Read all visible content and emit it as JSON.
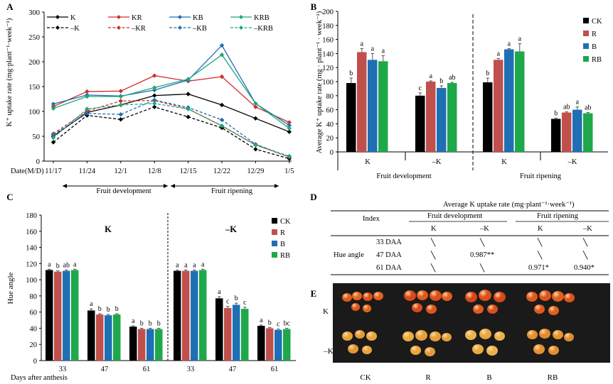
{
  "colors": {
    "CK": "#000000",
    "R": "#c0504d",
    "B": "#1f6fb4",
    "RB": "#1ea84a"
  },
  "panel_labels": [
    "A",
    "B",
    "C",
    "D",
    "E"
  ],
  "chart_data": [
    {
      "id": "A",
      "type": "line",
      "ylabel": "K⁺ uptake rate (mg·plant⁻¹·week⁻¹)",
      "xlabel": "Date(M/D)",
      "categories": [
        "11/17",
        "11/24",
        "12/1",
        "12/8",
        "12/15",
        "12/22",
        "12/29",
        "1/5"
      ],
      "ylim": [
        0,
        300
      ],
      "yticks": [
        0,
        50,
        100,
        150,
        200,
        250,
        300
      ],
      "series": [
        {
          "name": "K",
          "color": "#000000",
          "dash": false,
          "marker": "diamond",
          "values": [
            50,
            98,
            113,
            132,
            135,
            113,
            86,
            59
          ]
        },
        {
          "name": "KR",
          "color": "#d02e2e",
          "dash": false,
          "marker": "diamond",
          "values": [
            110,
            140,
            141,
            172,
            161,
            170,
            109,
            78
          ]
        },
        {
          "name": "KB",
          "color": "#1f6fb4",
          "dash": false,
          "marker": "diamond",
          "values": [
            115,
            133,
            131,
            143,
            163,
            233,
            116,
            72
          ]
        },
        {
          "name": "KRB",
          "color": "#1ea879",
          "dash": false,
          "marker": "diamond",
          "values": [
            106,
            130,
            130,
            148,
            165,
            214,
            116,
            66
          ]
        },
        {
          "name": "–K",
          "color": "#000000",
          "dash": true,
          "marker": "diamond",
          "values": [
            38,
            92,
            84,
            109,
            89,
            67,
            24,
            5
          ]
        },
        {
          "name": "–KR",
          "color": "#d02e2e",
          "dash": true,
          "marker": "diamond",
          "values": [
            55,
            101,
            121,
            122,
            105,
            71,
            33,
            8
          ]
        },
        {
          "name": "–KB",
          "color": "#1f6fb4",
          "dash": true,
          "marker": "diamond",
          "values": [
            53,
            96,
            94,
            123,
            108,
            83,
            34,
            9
          ]
        },
        {
          "name": "–KRB",
          "color": "#1ea879",
          "dash": true,
          "marker": "diamond",
          "values": [
            47,
            105,
            113,
            116,
            105,
            71,
            32,
            10
          ]
        }
      ],
      "arrows": [
        {
          "label": "Fruit development"
        },
        {
          "label": "Fruit ripening"
        }
      ]
    },
    {
      "id": "B",
      "type": "bar",
      "ylabel": "Average K⁺ uptake rate (mg · plant⁻¹ · week⁻¹)",
      "ylim": [
        0,
        200
      ],
      "yticks": [
        0,
        20,
        40,
        60,
        80,
        100,
        120,
        140,
        160,
        180,
        200
      ],
      "legend": [
        "CK",
        "R",
        "B",
        "RB"
      ],
      "groups": [
        {
          "label": "K",
          "values": [
            98,
            142,
            131,
            129
          ],
          "errors": [
            7,
            5,
            9,
            8
          ],
          "letters": [
            "b",
            "a",
            "a",
            "a"
          ]
        },
        {
          "label": "–K",
          "values": [
            80,
            100,
            91,
            98
          ],
          "errors": [
            4,
            1,
            3,
            1
          ],
          "letters": [
            "c",
            "a",
            "b",
            "ab"
          ]
        },
        {
          "label": "K",
          "values": [
            99,
            131,
            146,
            143
          ],
          "errors": [
            6,
            2,
            1,
            11
          ],
          "letters": [
            "b",
            "a",
            "a",
            "a"
          ]
        },
        {
          "label": "–K",
          "values": [
            47,
            56,
            60,
            55
          ],
          "errors": [
            1,
            1,
            4,
            1
          ],
          "letters": [
            "b",
            "ab",
            "a",
            "ab"
          ]
        }
      ],
      "stages": [
        "Fruit development",
        "Fruit ripening"
      ]
    },
    {
      "id": "C",
      "type": "bar",
      "ylabel": "Hue angle",
      "xlabel": "Days after anthesis",
      "ylim": [
        0,
        180
      ],
      "yticks": [
        0,
        20,
        40,
        60,
        80,
        100,
        120,
        140,
        160,
        180
      ],
      "legend": [
        "CK",
        "R",
        "B",
        "RB"
      ],
      "panel_titles": [
        "K",
        "–K"
      ],
      "groups": [
        {
          "label": "33",
          "values": [
            112,
            110,
            111,
            112
          ],
          "errors": [
            1,
            1,
            1,
            1
          ],
          "letters": [
            "a",
            "b",
            "ab",
            "a"
          ]
        },
        {
          "label": "47",
          "values": [
            62,
            57,
            56,
            57
          ],
          "errors": [
            2,
            1,
            1,
            1
          ],
          "letters": [
            "a",
            "b",
            "b",
            "b"
          ]
        },
        {
          "label": "61",
          "values": [
            42,
            39,
            39,
            39
          ],
          "errors": [
            1,
            1,
            1,
            1
          ],
          "letters": [
            "a",
            "b",
            "b",
            "b"
          ]
        },
        {
          "label": "33",
          "values": [
            111,
            111,
            111,
            112
          ],
          "errors": [
            1,
            1,
            1,
            1
          ],
          "letters": [
            "a",
            "a",
            "a",
            "a"
          ]
        },
        {
          "label": "47",
          "values": [
            77,
            65,
            69,
            64
          ],
          "errors": [
            2,
            2,
            2,
            2
          ],
          "letters": [
            "a",
            "c",
            "b",
            "c"
          ]
        },
        {
          "label": "61",
          "values": [
            43,
            40,
            38,
            39
          ],
          "errors": [
            1,
            1,
            1,
            1
          ],
          "letters": [
            "a",
            "b",
            "c",
            "bc"
          ]
        }
      ]
    },
    {
      "id": "D",
      "type": "table",
      "title": "Average K uptake rate (mg·plant⁻¹·week⁻¹)",
      "index_header": "Index",
      "stage_headers": [
        "Fruit development",
        "Fruit ripening"
      ],
      "sub_headers": [
        "K",
        "–K",
        "K",
        "–K"
      ],
      "row_group": "Hue angle",
      "rows": [
        {
          "label": "33 DAA",
          "cells": [
            "╲",
            "╲",
            "╲",
            "╲"
          ]
        },
        {
          "label": "47 DAA",
          "cells": [
            "╲",
            "0.987**",
            "╲",
            "╲"
          ]
        },
        {
          "label": "61 DAA",
          "cells": [
            "╲",
            "╲",
            "0.971*",
            "0.940*"
          ]
        }
      ]
    }
  ],
  "photo": {
    "rows": [
      "K",
      "–K"
    ],
    "cols": [
      "CK",
      "R",
      "B",
      "RB"
    ]
  }
}
